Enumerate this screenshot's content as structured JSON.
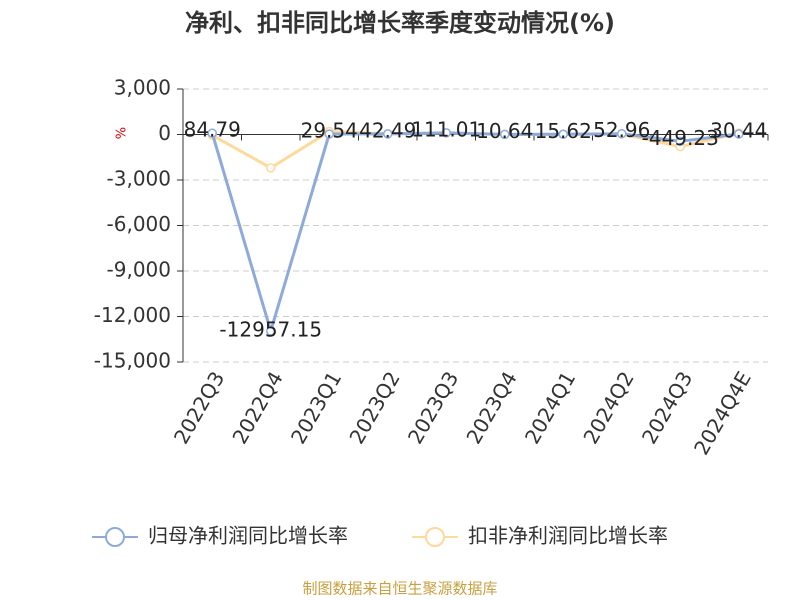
{
  "chart_data": {
    "type": "line",
    "title": "净利、扣非同比增长率季度变动情况(%)",
    "y_unit": "%",
    "source": "制图数据来自恒生聚源数据库",
    "categories": [
      "2022Q3",
      "2022Q4",
      "2023Q1",
      "2023Q2",
      "2023Q3",
      "2023Q4",
      "2024Q1",
      "2024Q2",
      "2024Q3",
      "2024Q4E"
    ],
    "series": [
      {
        "name": "归母净利润同比增长率",
        "color": "#8eaadb",
        "values": [
          84.79,
          -12957.15,
          29.54,
          42.49,
          111.01,
          10.64,
          15.62,
          52.96,
          -449.23,
          30.44
        ]
      },
      {
        "name": "扣非净利润同比增长率",
        "color": "#fdd99b",
        "values": [
          -50,
          -2200,
          200,
          50,
          100,
          0,
          20,
          30,
          -800,
          100
        ]
      }
    ],
    "ylim": [
      -15000,
      3000
    ],
    "yticks": [
      {
        "value": -15000,
        "label": "-15,000"
      },
      {
        "value": -12000,
        "label": "-12,000"
      },
      {
        "value": -9000,
        "label": "-9,000"
      },
      {
        "value": -6000,
        "label": "-6,000"
      },
      {
        "value": -3000,
        "label": "-3,000"
      },
      0,
      {
        "value": 3000,
        "label": "3,000"
      }
    ],
    "grid": true
  }
}
